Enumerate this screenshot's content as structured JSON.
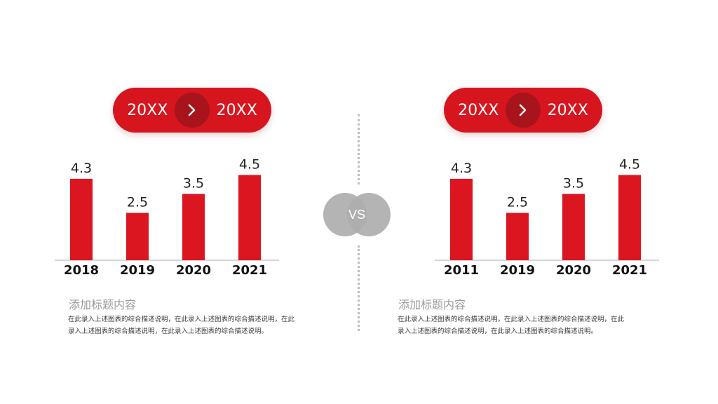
{
  "left": {
    "pill": {
      "from": "20XX",
      "to": "20XX"
    },
    "title": "添加标题内容",
    "body_line1": "在此录入上述图表的综合描述说明，在此录入上述图表的综合描述说明，在此",
    "body_line2": "录入上述图表的综合描述说明，在此录入上述图表的综合描述说明。"
  },
  "right": {
    "pill": {
      "from": "20XX",
      "to": "20XX"
    },
    "title": "添加标题内容",
    "body_line1": "在此录入上述图表的综合描述说明，在此录入上述图表的综合描述说明，在此",
    "body_line2": "录入上述图表的综合描述说明，在此录入上述图表的综合描述说明。"
  },
  "vs_label": "VS",
  "colors": {
    "accent": "#db1620",
    "pill_arrow_bg": "#a8141b",
    "vs_circle": "#aeaeae"
  },
  "chart_data": [
    {
      "type": "bar",
      "categories": [
        "2018",
        "2019",
        "2020",
        "2021"
      ],
      "values": [
        4.3,
        2.5,
        3.5,
        4.5
      ],
      "ylim": [
        0,
        5
      ],
      "grid": false
    },
    {
      "type": "bar",
      "categories": [
        "2011",
        "2019",
        "2020",
        "2021"
      ],
      "values": [
        4.3,
        2.5,
        3.5,
        4.5
      ],
      "ylim": [
        0,
        5
      ],
      "grid": false
    }
  ]
}
